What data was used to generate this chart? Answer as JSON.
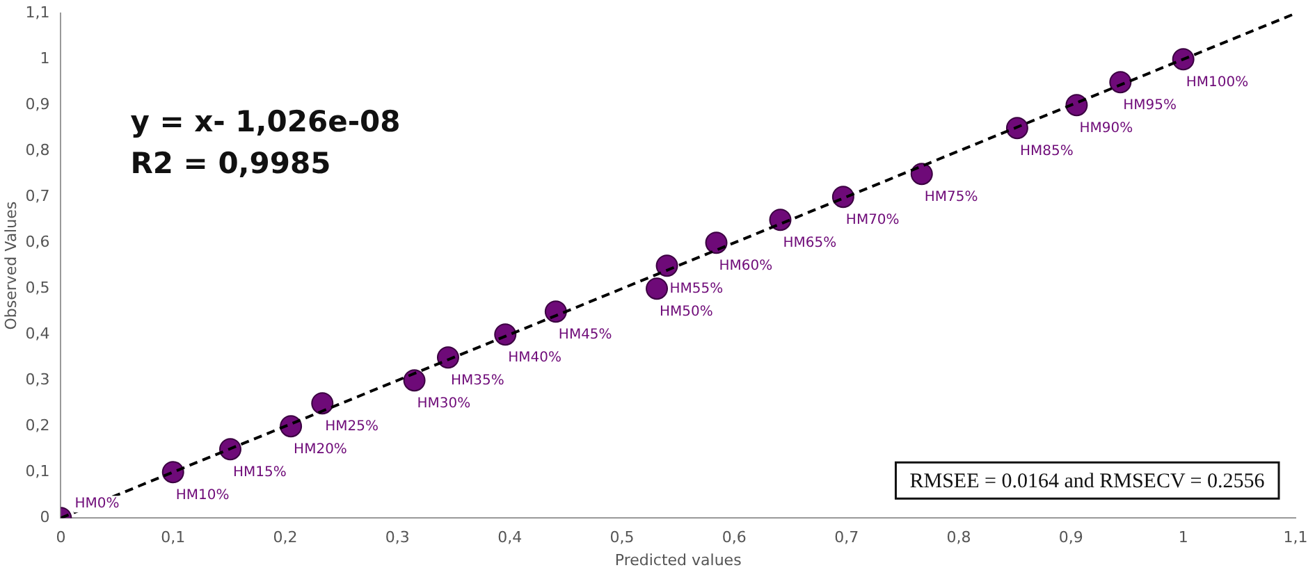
{
  "chart_data": {
    "type": "scatter",
    "xlabel": "Predicted values",
    "ylabel": "Observed Values",
    "xlim": [
      0,
      1.1
    ],
    "ylim": [
      0,
      1.1
    ],
    "xticks": [
      0,
      {
        "value": 0.1,
        "label": "0,1"
      },
      {
        "value": 0.2,
        "label": "0,2"
      },
      {
        "value": 0.3,
        "label": "0,3"
      },
      {
        "value": 0.4,
        "label": "0,4"
      },
      {
        "value": 0.5,
        "label": "0,5"
      },
      {
        "value": 0.6,
        "label": "0,6"
      },
      {
        "value": 0.7,
        "label": "0,7"
      },
      {
        "value": 0.8,
        "label": "0,8"
      },
      {
        "value": 0.9,
        "label": "0,9"
      },
      1,
      {
        "value": 1.1,
        "label": "1,1"
      }
    ],
    "yticks": [
      0,
      {
        "value": 0.1,
        "label": "0,1"
      },
      {
        "value": 0.2,
        "label": "0,2"
      },
      {
        "value": 0.3,
        "label": "0,3"
      },
      {
        "value": 0.4,
        "label": "0,4"
      },
      {
        "value": 0.5,
        "label": "0,5"
      },
      {
        "value": 0.6,
        "label": "0,6"
      },
      {
        "value": 0.7,
        "label": "0,7"
      },
      {
        "value": 0.8,
        "label": "0,8"
      },
      {
        "value": 0.9,
        "label": "0,9"
      },
      1,
      {
        "value": 1.1,
        "label": "1,1"
      }
    ],
    "grid": false,
    "legend": false,
    "series": [
      {
        "color": "#6e0a78",
        "marker": "circle",
        "x": [
          0,
          0.1,
          0.151,
          0.205,
          0.233,
          0.315,
          0.345,
          0.396,
          0.441,
          0.531,
          0.54,
          0.584,
          0.641,
          0.697,
          0.767,
          0.852,
          0.905,
          0.944,
          1
        ],
        "values": [
          0,
          0.1,
          0.15,
          0.2,
          0.25,
          0.3,
          0.35,
          0.4,
          0.45,
          0.5,
          0.55,
          0.6,
          0.65,
          0.7,
          0.75,
          0.85,
          0.9,
          0.95,
          1
        ]
      },
      {
        "type": "line",
        "color": "#000000",
        "line_style": "dashed",
        "marker": "none",
        "x": [
          0,
          1.1
        ],
        "values": [
          0,
          1.1
        ]
      }
    ],
    "annotations": [
      {
        "text": "HM0%",
        "x": 0,
        "y": 0
      },
      {
        "text": "HM10%",
        "x": 0.1,
        "y": 0.1
      },
      {
        "text": "HM15%",
        "x": 0.151,
        "y": 0.15
      },
      {
        "text": "HM20%",
        "x": 0.205,
        "y": 0.2
      },
      {
        "text": "HM25%",
        "x": 0.233,
        "y": 0.25
      },
      {
        "text": "HM30%",
        "x": 0.315,
        "y": 0.3
      },
      {
        "text": "HM35%",
        "x": 0.345,
        "y": 0.35
      },
      {
        "text": "HM40%",
        "x": 0.396,
        "y": 0.4
      },
      {
        "text": "HM45%",
        "x": 0.441,
        "y": 0.45
      },
      {
        "text": "HM50%",
        "x": 0.531,
        "y": 0.5
      },
      {
        "text": "HM55%",
        "x": 0.54,
        "y": 0.55
      },
      {
        "text": "HM60%",
        "x": 0.584,
        "y": 0.6
      },
      {
        "text": "HM65%",
        "x": 0.641,
        "y": 0.65
      },
      {
        "text": "HM70%",
        "x": 0.697,
        "y": 0.7
      },
      {
        "text": "HM75%",
        "x": 0.767,
        "y": 0.75
      },
      {
        "text": "HM85%",
        "x": 0.852,
        "y": 0.85
      },
      {
        "text": "HM90%",
        "x": 0.905,
        "y": 0.9
      },
      {
        "text": "HM95%",
        "x": 0.944,
        "y": 0.95
      },
      {
        "text": "HM100%",
        "x": 1,
        "y": 1
      },
      "y = x- 1,026e-08",
      "R2 = 0,9985",
      "RMSEE = 0.0164 and RMSECV = 0.2556"
    ]
  }
}
